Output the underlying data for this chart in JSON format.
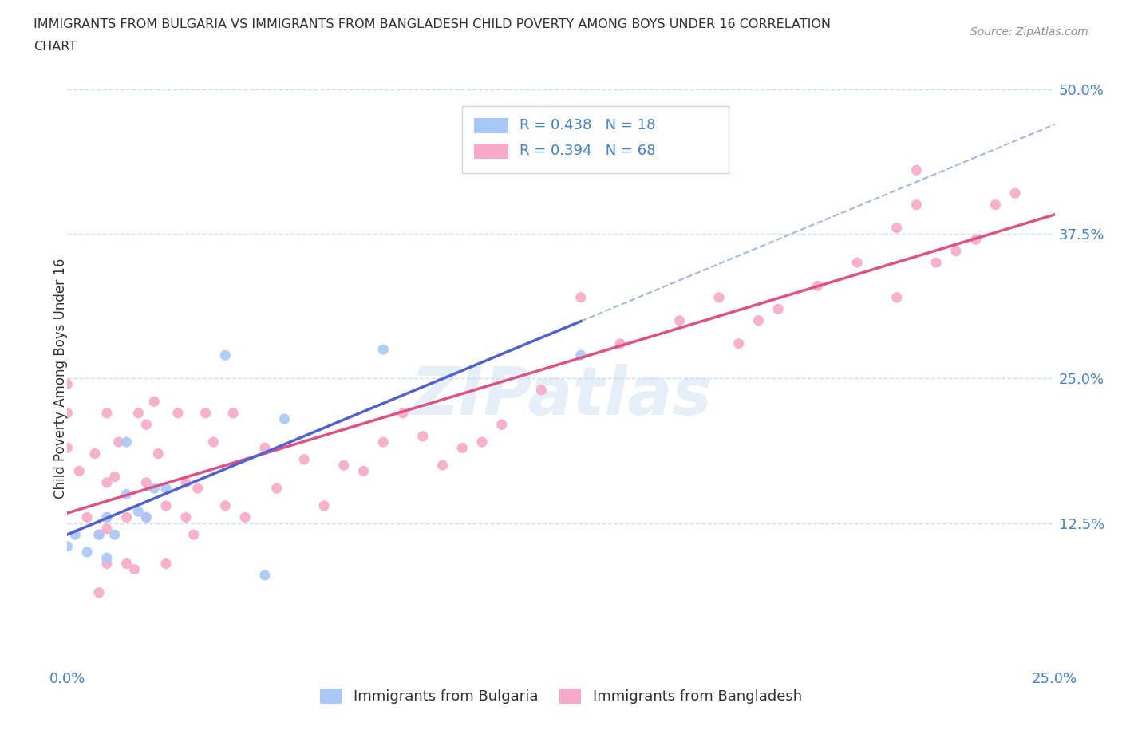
{
  "title_line1": "IMMIGRANTS FROM BULGARIA VS IMMIGRANTS FROM BANGLADESH CHILD POVERTY AMONG BOYS UNDER 16 CORRELATION",
  "title_line2": "CHART",
  "source_text": "Source: ZipAtlas.com",
  "ylabel": "Child Poverty Among Boys Under 16",
  "xlim": [
    0.0,
    0.25
  ],
  "ylim": [
    0.0,
    0.5
  ],
  "ytick_values": [
    0.125,
    0.25,
    0.375,
    0.5
  ],
  "xtick_values": [
    0.0,
    0.25
  ],
  "color_bulgaria": "#a8c8f8",
  "color_bangladesh": "#f8a8c8",
  "trend_color_bulgaria": "#5060d0",
  "trend_color_bangladesh": "#e05080",
  "trend_color_bulgaria_dashed": "#a0b8e0",
  "legend_label_bulgaria": "R = 0.438   N = 18",
  "legend_label_bangladesh": "R = 0.394   N = 68",
  "watermark": "ZIPatlas",
  "grid_color": "#d0dff0",
  "axis_label_color": "#4080d0",
  "title_color": "#303030",
  "source_color": "#909090",
  "bulgaria_x": [
    0.0,
    0.002,
    0.005,
    0.008,
    0.01,
    0.01,
    0.012,
    0.015,
    0.015,
    0.018,
    0.02,
    0.022,
    0.025,
    0.04,
    0.05,
    0.055,
    0.08,
    0.13
  ],
  "bulgaria_y": [
    0.105,
    0.115,
    0.1,
    0.115,
    0.095,
    0.13,
    0.115,
    0.15,
    0.195,
    0.135,
    0.13,
    0.155,
    0.155,
    0.27,
    0.08,
    0.215,
    0.275,
    0.27
  ],
  "bangladesh_x": [
    0.0,
    0.0,
    0.0,
    0.003,
    0.005,
    0.007,
    0.008,
    0.008,
    0.01,
    0.01,
    0.01,
    0.01,
    0.01,
    0.012,
    0.013,
    0.015,
    0.015,
    0.017,
    0.018,
    0.02,
    0.02,
    0.02,
    0.022,
    0.023,
    0.025,
    0.025,
    0.028,
    0.03,
    0.03,
    0.032,
    0.033,
    0.035,
    0.037,
    0.04,
    0.042,
    0.045,
    0.05,
    0.053,
    0.06,
    0.065,
    0.07,
    0.075,
    0.08,
    0.085,
    0.09,
    0.095,
    0.1,
    0.105,
    0.11,
    0.12,
    0.13,
    0.14,
    0.155,
    0.165,
    0.17,
    0.175,
    0.18,
    0.19,
    0.2,
    0.21,
    0.21,
    0.215,
    0.215,
    0.22,
    0.225,
    0.23,
    0.235,
    0.24
  ],
  "bangladesh_y": [
    0.19,
    0.22,
    0.245,
    0.17,
    0.13,
    0.185,
    0.065,
    0.115,
    0.09,
    0.12,
    0.13,
    0.16,
    0.22,
    0.165,
    0.195,
    0.09,
    0.13,
    0.085,
    0.22,
    0.13,
    0.16,
    0.21,
    0.23,
    0.185,
    0.09,
    0.14,
    0.22,
    0.13,
    0.16,
    0.115,
    0.155,
    0.22,
    0.195,
    0.14,
    0.22,
    0.13,
    0.19,
    0.155,
    0.18,
    0.14,
    0.175,
    0.17,
    0.195,
    0.22,
    0.2,
    0.175,
    0.19,
    0.195,
    0.21,
    0.24,
    0.32,
    0.28,
    0.3,
    0.32,
    0.28,
    0.3,
    0.31,
    0.33,
    0.35,
    0.38,
    0.32,
    0.4,
    0.43,
    0.35,
    0.36,
    0.37,
    0.4,
    0.41
  ]
}
